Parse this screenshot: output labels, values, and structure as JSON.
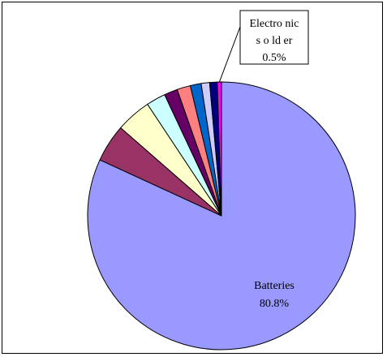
{
  "chart_data": {
    "type": "pie",
    "title": "",
    "slices": [
      {
        "label": "Batteries",
        "value": 80.8,
        "color": "#9999ff",
        "label_lines": [
          "Batteries",
          "80.8%"
        ]
      },
      {
        "value": 4.5,
        "color": "#993366"
      },
      {
        "value": 4.2,
        "color": "#ffffcc"
      },
      {
        "value": 2.3,
        "color": "#ccffff"
      },
      {
        "value": 1.6,
        "color": "#660066"
      },
      {
        "value": 1.6,
        "color": "#ff8080"
      },
      {
        "value": 1.3,
        "color": "#0066cc"
      },
      {
        "value": 1.0,
        "color": "#ccccff"
      },
      {
        "value": 0.9,
        "color": "#000080"
      },
      {
        "label": "Electronic solder",
        "value": 0.5,
        "color": "#ff00ff",
        "label_lines": [
          "Electro nic",
          "s o ld er",
          "0.5%"
        ]
      }
    ]
  }
}
